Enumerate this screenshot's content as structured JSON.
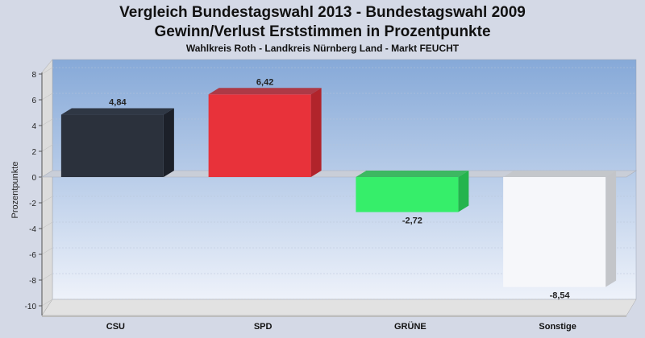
{
  "chart_data": {
    "type": "bar",
    "title": "Vergleich Bundestagswahl 2013  - Bundestagswahl 2009",
    "subtitle": "Gewinn/Verlust Erststimmen in Prozentpunkte",
    "caption": "Wahlkreis Roth - Landkreis Nürnberg Land - Markt FEUCHT",
    "ylabel": "Prozentpunkte",
    "xlabel": "",
    "ylim": [
      -10,
      8
    ],
    "yticks": [
      "8",
      "6",
      "4",
      "2",
      "0",
      "-2",
      "-4",
      "-6",
      "-8",
      "-10"
    ],
    "categories": [
      "CSU",
      "SPD",
      "GRÜNE",
      "Sonstige"
    ],
    "values": [
      4.84,
      6.42,
      -2.72,
      -8.54
    ],
    "value_labels": [
      "4,84",
      "6,42",
      "-2,72",
      "-8,54"
    ],
    "colors": [
      "#2b313c",
      "#e8323a",
      "#36ee6a",
      "#f6f7fa"
    ],
    "side_colors": [
      "#1c2029",
      "#b1242b",
      "#24b44d",
      "#c3c5c9"
    ],
    "grid": true,
    "background_gradient": [
      "#86a9d8",
      "#eef2fa"
    ]
  }
}
